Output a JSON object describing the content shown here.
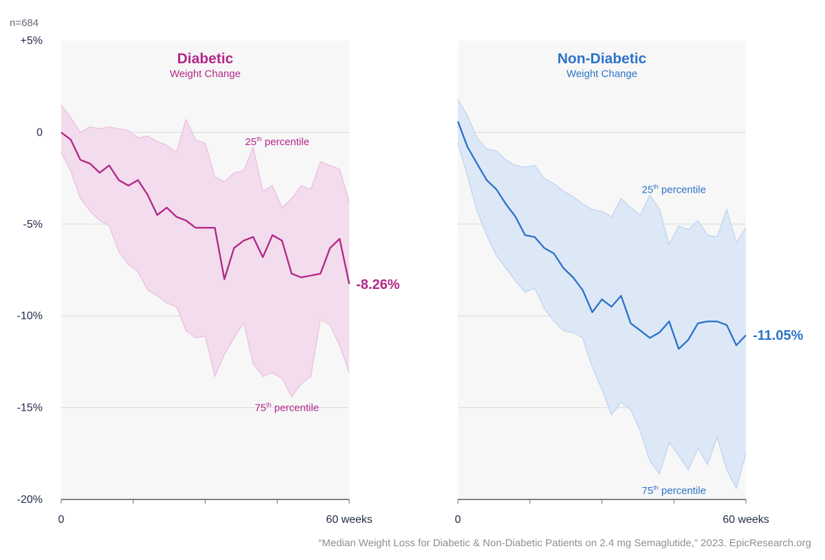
{
  "sample_size": "n=684",
  "source": "“Median Weight Loss for Diabetic & Non-Diabetic Patients on 2.4 mg Semaglutide,” 2023. EpicResearch.org",
  "colors": {
    "diabetic": "#b3288a",
    "diabetic_band": "#f3dced",
    "diabetic_band_edge": "#e7b6d6",
    "non_diabetic": "#2e73c8",
    "non_diabetic_band": "#dde8f7",
    "non_diabetic_band_edge": "#b3cdee",
    "panel_bg": "#f7f7f7",
    "grid": "#d9d9d9",
    "axis_text": "#1f2a44"
  },
  "chart_data": [
    {
      "type": "line",
      "panel": "diabetic",
      "title": "Diabetic",
      "subtitle": "Weight Change",
      "xlabel": "",
      "ylabel": "",
      "xlim": [
        0,
        60
      ],
      "ylim": [
        -20,
        5
      ],
      "x_tick_labels": [
        "0",
        "60 weeks"
      ],
      "y_ticks": [
        5,
        0,
        -5,
        -10,
        -15,
        -20
      ],
      "y_tick_labels": [
        "+5%",
        "0",
        "-5%",
        "-10%",
        "-15%",
        "-20%"
      ],
      "end_label": "-8.26%",
      "band_labels": {
        "upper": {
          "sup": "th",
          "base": "25",
          "text": "percentile"
        },
        "lower": {
          "sup": "th",
          "base": "75",
          "text": "percentile"
        }
      },
      "x": [
        0,
        2,
        4,
        6,
        8,
        10,
        12,
        14,
        16,
        18,
        20,
        22,
        24,
        26,
        28,
        30,
        32,
        34,
        36,
        38,
        40,
        42,
        44,
        46,
        48,
        50,
        52,
        54,
        56,
        58,
        60
      ],
      "series": [
        {
          "name": "Median",
          "values": [
            0,
            -0.4,
            -1.5,
            -1.7,
            -2.2,
            -1.8,
            -2.6,
            -2.9,
            -2.6,
            -3.4,
            -4.5,
            -4.1,
            -4.6,
            -4.8,
            -5.2,
            -5.2,
            -5.2,
            -8.0,
            -6.3,
            -5.9,
            -5.7,
            -6.8,
            -5.6,
            -5.9,
            -7.7,
            -7.9,
            -7.8,
            -7.7,
            -6.3,
            -5.8,
            -8.26
          ]
        },
        {
          "name": "25th percentile",
          "values": [
            1.5,
            0.8,
            0.0,
            0.3,
            0.2,
            0.3,
            0.2,
            0.1,
            -0.3,
            -0.2,
            -0.5,
            -0.7,
            -1.1,
            0.7,
            -0.4,
            -0.6,
            -2.4,
            -2.7,
            -2.2,
            -2.1,
            -0.8,
            -3.2,
            -2.9,
            -4.1,
            -3.6,
            -2.9,
            -3.1,
            -1.6,
            -1.8,
            -2.0,
            -3.8
          ]
        },
        {
          "name": "75th percentile",
          "values": [
            -1.1,
            -2.1,
            -3.6,
            -4.3,
            -4.8,
            -5.1,
            -6.5,
            -7.2,
            -7.6,
            -8.6,
            -8.9,
            -9.3,
            -9.5,
            -10.8,
            -11.2,
            -11.1,
            -13.3,
            -12.1,
            -11.2,
            -10.4,
            -12.6,
            -13.3,
            -13.1,
            -13.4,
            -14.4,
            -13.7,
            -13.3,
            -10.2,
            -10.5,
            -11.6,
            -13.1
          ]
        }
      ]
    },
    {
      "type": "line",
      "panel": "non_diabetic",
      "title": "Non-Diabetic",
      "subtitle": "Weight Change",
      "xlabel": "",
      "ylabel": "",
      "xlim": [
        0,
        60
      ],
      "ylim": [
        -20,
        5
      ],
      "x_tick_labels": [
        "0",
        "60 weeks"
      ],
      "y_ticks": [
        5,
        0,
        -5,
        -10,
        -15,
        -20
      ],
      "end_label": "-11.05%",
      "band_labels": {
        "upper": {
          "sup": "th",
          "base": "25",
          "text": "percentile"
        },
        "lower": {
          "sup": "th",
          "base": "75",
          "text": "percentile"
        }
      },
      "x": [
        0,
        2,
        4,
        6,
        8,
        10,
        12,
        14,
        16,
        18,
        20,
        22,
        24,
        26,
        28,
        30,
        32,
        34,
        36,
        38,
        40,
        42,
        44,
        46,
        48,
        50,
        52,
        54,
        56,
        58,
        60
      ],
      "series": [
        {
          "name": "Median",
          "values": [
            0.6,
            -0.8,
            -1.7,
            -2.6,
            -3.1,
            -3.9,
            -4.6,
            -5.6,
            -5.7,
            -6.3,
            -6.6,
            -7.4,
            -7.9,
            -8.6,
            -9.8,
            -9.1,
            -9.5,
            -8.9,
            -10.4,
            -10.8,
            -11.2,
            -10.9,
            -10.3,
            -11.8,
            -11.3,
            -10.4,
            -10.3,
            -10.3,
            -10.5,
            -11.6,
            -11.05
          ]
        },
        {
          "name": "25th percentile",
          "values": [
            1.8,
            0.9,
            -0.3,
            -0.9,
            -1.0,
            -1.5,
            -1.8,
            -1.9,
            -1.8,
            -2.5,
            -2.8,
            -3.2,
            -3.5,
            -3.9,
            -4.2,
            -4.3,
            -4.6,
            -3.6,
            -4.1,
            -4.5,
            -3.4,
            -4.2,
            -6.1,
            -5.1,
            -5.3,
            -4.8,
            -5.6,
            -5.7,
            -4.2,
            -6.0,
            -5.2
          ]
        },
        {
          "name": "75th percentile",
          "values": [
            -0.6,
            -2.4,
            -4.3,
            -5.6,
            -6.7,
            -7.4,
            -8.1,
            -8.7,
            -8.5,
            -9.6,
            -10.3,
            -10.8,
            -10.9,
            -11.2,
            -12.8,
            -14.0,
            -15.4,
            -14.7,
            -15.1,
            -16.3,
            -17.9,
            -18.6,
            -16.9,
            -17.6,
            -18.4,
            -17.2,
            -18.1,
            -16.6,
            -18.4,
            -19.4,
            -17.5
          ]
        }
      ]
    }
  ]
}
